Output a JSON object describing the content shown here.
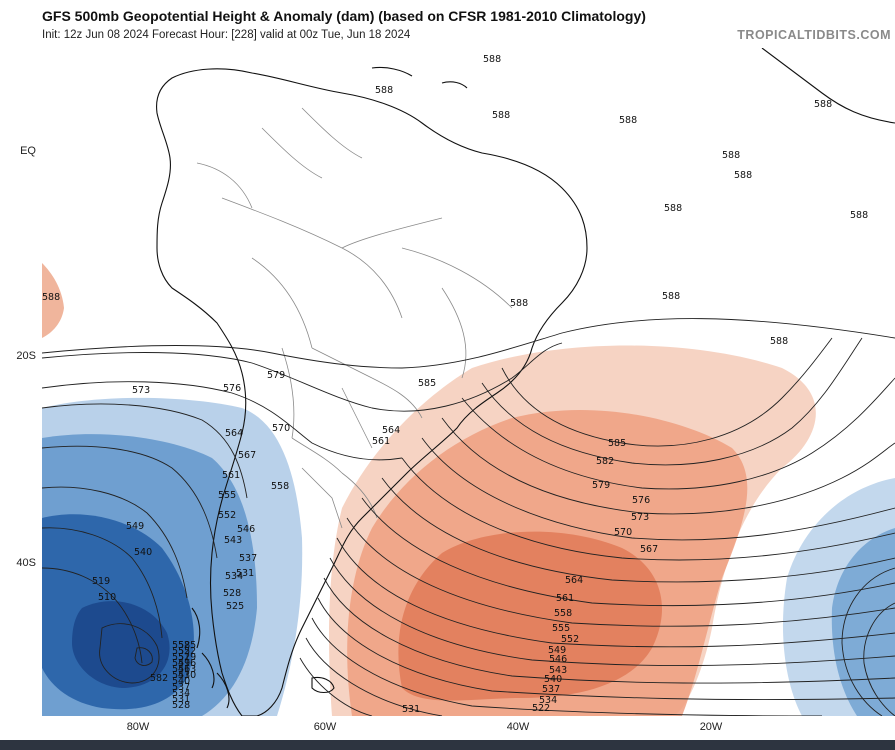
{
  "header": {
    "title": "GFS 500mb Geopotential Height & Anomaly (dam) (based on CFSR 1981-2010 Climatology)",
    "subtitle": "Init: 12z Jun 08 2024   Forecast Hour: [228]   valid at 00z Tue, Jun 18 2024",
    "brand": "TROPICALTIDBITS.COM"
  },
  "axes": {
    "lat_labels": [
      "EQ",
      "20S",
      "40S"
    ],
    "lon_labels": [
      "80W",
      "60W",
      "40W",
      "20W"
    ]
  },
  "map": {
    "region": "South America and South Atlantic",
    "contour_labels": [
      "588",
      "588",
      "588",
      "588",
      "588",
      "588",
      "588",
      "588",
      "588",
      "588",
      "588",
      "588",
      "588",
      "585",
      "582",
      "579",
      "576",
      "573",
      "570",
      "567",
      "564",
      "561",
      "558",
      "555",
      "552",
      "549",
      "546",
      "543",
      "540",
      "537",
      "534",
      "531",
      "522",
      "519",
      "510",
      "582",
      "579",
      "576",
      "573",
      "570",
      "567",
      "564",
      "561",
      "558",
      "555",
      "552",
      "549",
      "546",
      "543",
      "540",
      "537",
      "534",
      "531",
      "528",
      "525",
      "585",
      "564",
      "561",
      "558",
      "555",
      "552",
      "549",
      "546",
      "543",
      "540",
      "537",
      "534",
      "531",
      "528",
      "525",
      "522",
      "519",
      "516",
      "513",
      "510"
    ],
    "colors": {
      "positive_anomaly": "#e8896a",
      "negative_anomaly": "#2f6fb3",
      "contour": "#222222",
      "border": "#7a7a7a",
      "coastline": "#111111"
    }
  }
}
